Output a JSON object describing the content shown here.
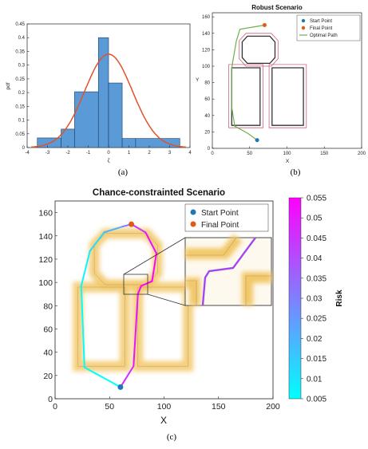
{
  "panels": {
    "a": {
      "caption": "(a)",
      "chart_data": {
        "type": "bar",
        "subtype": "histogram-with-fit",
        "ylabel": "pdf",
        "xlabel": "ζ",
        "xlim": [
          -4,
          4
        ],
        "ylim": [
          0,
          0.45
        ],
        "xticks": [
          -4,
          -3,
          -2,
          -1,
          0,
          1,
          2,
          3,
          4
        ],
        "yticks": [
          0,
          0.05,
          0.1,
          0.15,
          0.2,
          0.25,
          0.3,
          0.35,
          0.4,
          0.45
        ],
        "bins": [
          {
            "from": -3.5,
            "to": -2.33,
            "value": 0.035
          },
          {
            "from": -2.33,
            "to": -1.67,
            "value": 0.067
          },
          {
            "from": -1.67,
            "to": -0.5,
            "value": 0.203
          },
          {
            "from": -0.5,
            "to": 0.0,
            "value": 0.4
          },
          {
            "from": 0.0,
            "to": 0.67,
            "value": 0.235
          },
          {
            "from": 0.67,
            "to": 1.33,
            "value": 0.033
          },
          {
            "from": 1.33,
            "to": 3.5,
            "value": 0.033
          }
        ],
        "fit": {
          "mean": 0.0,
          "peak": 0.34,
          "sigma": 1.17
        },
        "colors": {
          "bar": "#5a9ad6",
          "bar_edge": "#1f3a5f",
          "fit": "#e0532b"
        }
      }
    },
    "b": {
      "caption": "(b)",
      "chart_data": {
        "type": "line",
        "title": "Robust Scenario",
        "xlabel": "X",
        "ylabel": "Y",
        "xlim": [
          0,
          200
        ],
        "ylim": [
          0,
          165
        ],
        "xticks": [
          0,
          50,
          100,
          150,
          200
        ],
        "yticks": [
          0,
          20,
          40,
          60,
          80,
          100,
          120,
          140,
          160
        ],
        "legend": [
          "Start Point",
          "Final Point",
          "Optimal Path"
        ],
        "legend_position": "top-right",
        "start": [
          60,
          10
        ],
        "goal": [
          70,
          150
        ],
        "path": [
          [
            60,
            10
          ],
          [
            48,
            18
          ],
          [
            30,
            27
          ],
          [
            26,
            50
          ],
          [
            26,
            98
          ],
          [
            32,
            130
          ],
          [
            37,
            145
          ],
          [
            70,
            150
          ]
        ],
        "colors": {
          "start": "#1f77b4",
          "final": "#e05a1a",
          "path": "#6cb04a",
          "obstacle": "#333333",
          "margin": "#d06080"
        }
      }
    },
    "c": {
      "caption": "(c)",
      "chart_data": {
        "type": "line",
        "title": "Chance-constrainted Scenario",
        "xlabel": "X",
        "xlim": [
          0,
          200
        ],
        "ylim": [
          0,
          170
        ],
        "xticks": [
          0,
          50,
          100,
          150,
          200
        ],
        "yticks": [
          0,
          20,
          40,
          60,
          80,
          100,
          120,
          140,
          160
        ],
        "legend": [
          "Start Point",
          "Final Point"
        ],
        "legend_position": "top-right",
        "start": [
          60,
          10
        ],
        "goal": [
          70,
          150
        ],
        "path": [
          {
            "x": 60,
            "y": 10,
            "risk": 0.005
          },
          {
            "x": 27,
            "y": 27,
            "risk": 0.005
          },
          {
            "x": 24,
            "y": 97,
            "risk": 0.006
          },
          {
            "x": 32,
            "y": 127,
            "risk": 0.008
          },
          {
            "x": 45,
            "y": 143,
            "risk": 0.015
          },
          {
            "x": 62,
            "y": 148,
            "risk": 0.025
          },
          {
            "x": 70,
            "y": 150,
            "risk": 0.04
          },
          {
            "x": 83,
            "y": 143,
            "risk": 0.05
          },
          {
            "x": 93,
            "y": 125,
            "risk": 0.054
          },
          {
            "x": 89,
            "y": 101,
            "risk": 0.055
          },
          {
            "x": 79,
            "y": 97,
            "risk": 0.055
          },
          {
            "x": 76,
            "y": 90,
            "risk": 0.055
          },
          {
            "x": 72,
            "y": 28,
            "risk": 0.048
          },
          {
            "x": 60,
            "y": 10,
            "risk": 0.045
          }
        ],
        "colorbar": {
          "label": "Risk",
          "min": 0.005,
          "max": 0.055,
          "ticks": [
            "0.005",
            "0.01",
            "0.015",
            "0.02",
            "0.025",
            "0.03",
            "0.035",
            "0.04",
            "0.045",
            "0.05",
            "0.055"
          ],
          "colors": [
            "#00ffff",
            "#ff00ff"
          ]
        },
        "colors": {
          "start": "#1f77b4",
          "final": "#e05a1a",
          "halo": "#f2c86a",
          "obstacle": "#9a7f4a"
        }
      }
    }
  }
}
